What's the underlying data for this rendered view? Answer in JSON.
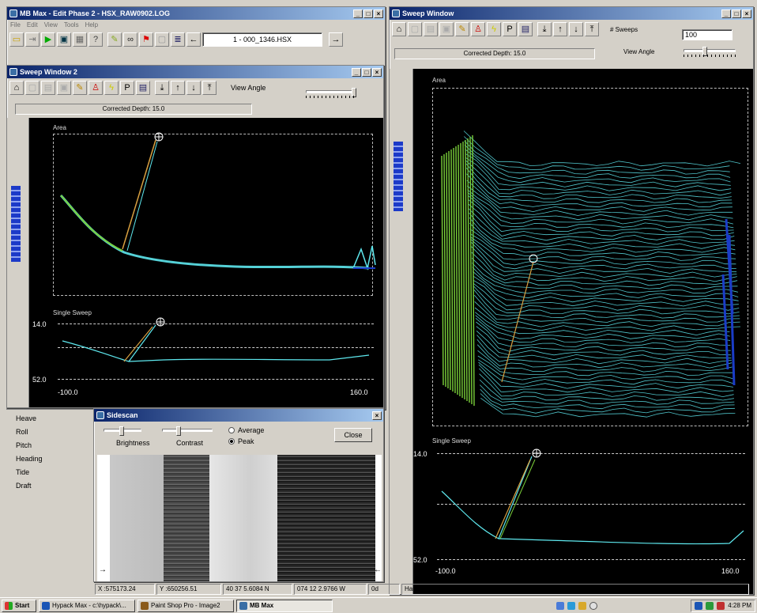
{
  "colors": {
    "title_active": "#0a246a",
    "canvas_bg": "#000000",
    "cyan_trace": "#5ee8ee",
    "green_trace": "#7bd13a"
  },
  "main_window": {
    "title": "MB Max - Edit Phase 2 - HSX_RAW0902.LOG",
    "menu": [
      "File",
      "Edit",
      "View",
      "Tools",
      "Help"
    ],
    "file_field": "1 - 000_1346.HSX",
    "arrow_left": "←",
    "arrow_right": "→"
  },
  "sweep_window_2": {
    "title": "Sweep Window 2",
    "view_angle_label": "View Angle",
    "corrected_depth": "Corrected Depth: 15.0",
    "area_label": "Area",
    "single_sweep_label": "Single Sweep",
    "y_top": "14.0",
    "y_bottom": "52.0",
    "x_left": "-100.0",
    "x_right": "160.0"
  },
  "sweep_window": {
    "title": "Sweep Window",
    "sweeps_label": "# Sweeps",
    "sweeps_value": "100",
    "view_angle_label": "View Angle",
    "corrected_depth": "Corrected Depth: 15.0",
    "area_label": "Area",
    "single_sweep_label": "Single Sweep",
    "y_top": "14.0",
    "y_bottom": "52.0",
    "x_left": "-100.0",
    "x_right": "160.0"
  },
  "attitude_labels": [
    "Heave",
    "Roll",
    "Pitch",
    "Heading",
    "Tide",
    "Draft"
  ],
  "sidescan": {
    "title": "Sidescan",
    "brightness_label": "Brightness",
    "contrast_label": "Contrast",
    "average_label": "Average",
    "peak_label": "Peak",
    "close_label": "Close",
    "left_arrow": "→",
    "right_arrow": "←"
  },
  "status_bar": {
    "x": "X :575173.24",
    "y": "Y :650256.51",
    "lat": "40 37 5.6084 N",
    "lon": "074 12 2.9766 W",
    "od": "0d",
    "hardlock": "Hardlock Present"
  },
  "taskbar": {
    "start": "Start",
    "items": [
      "Hypack Max - c:\\hypack\\...",
      "Paint Shop Pro - Image2",
      "MB Max"
    ],
    "clock": "4:28 PM"
  }
}
